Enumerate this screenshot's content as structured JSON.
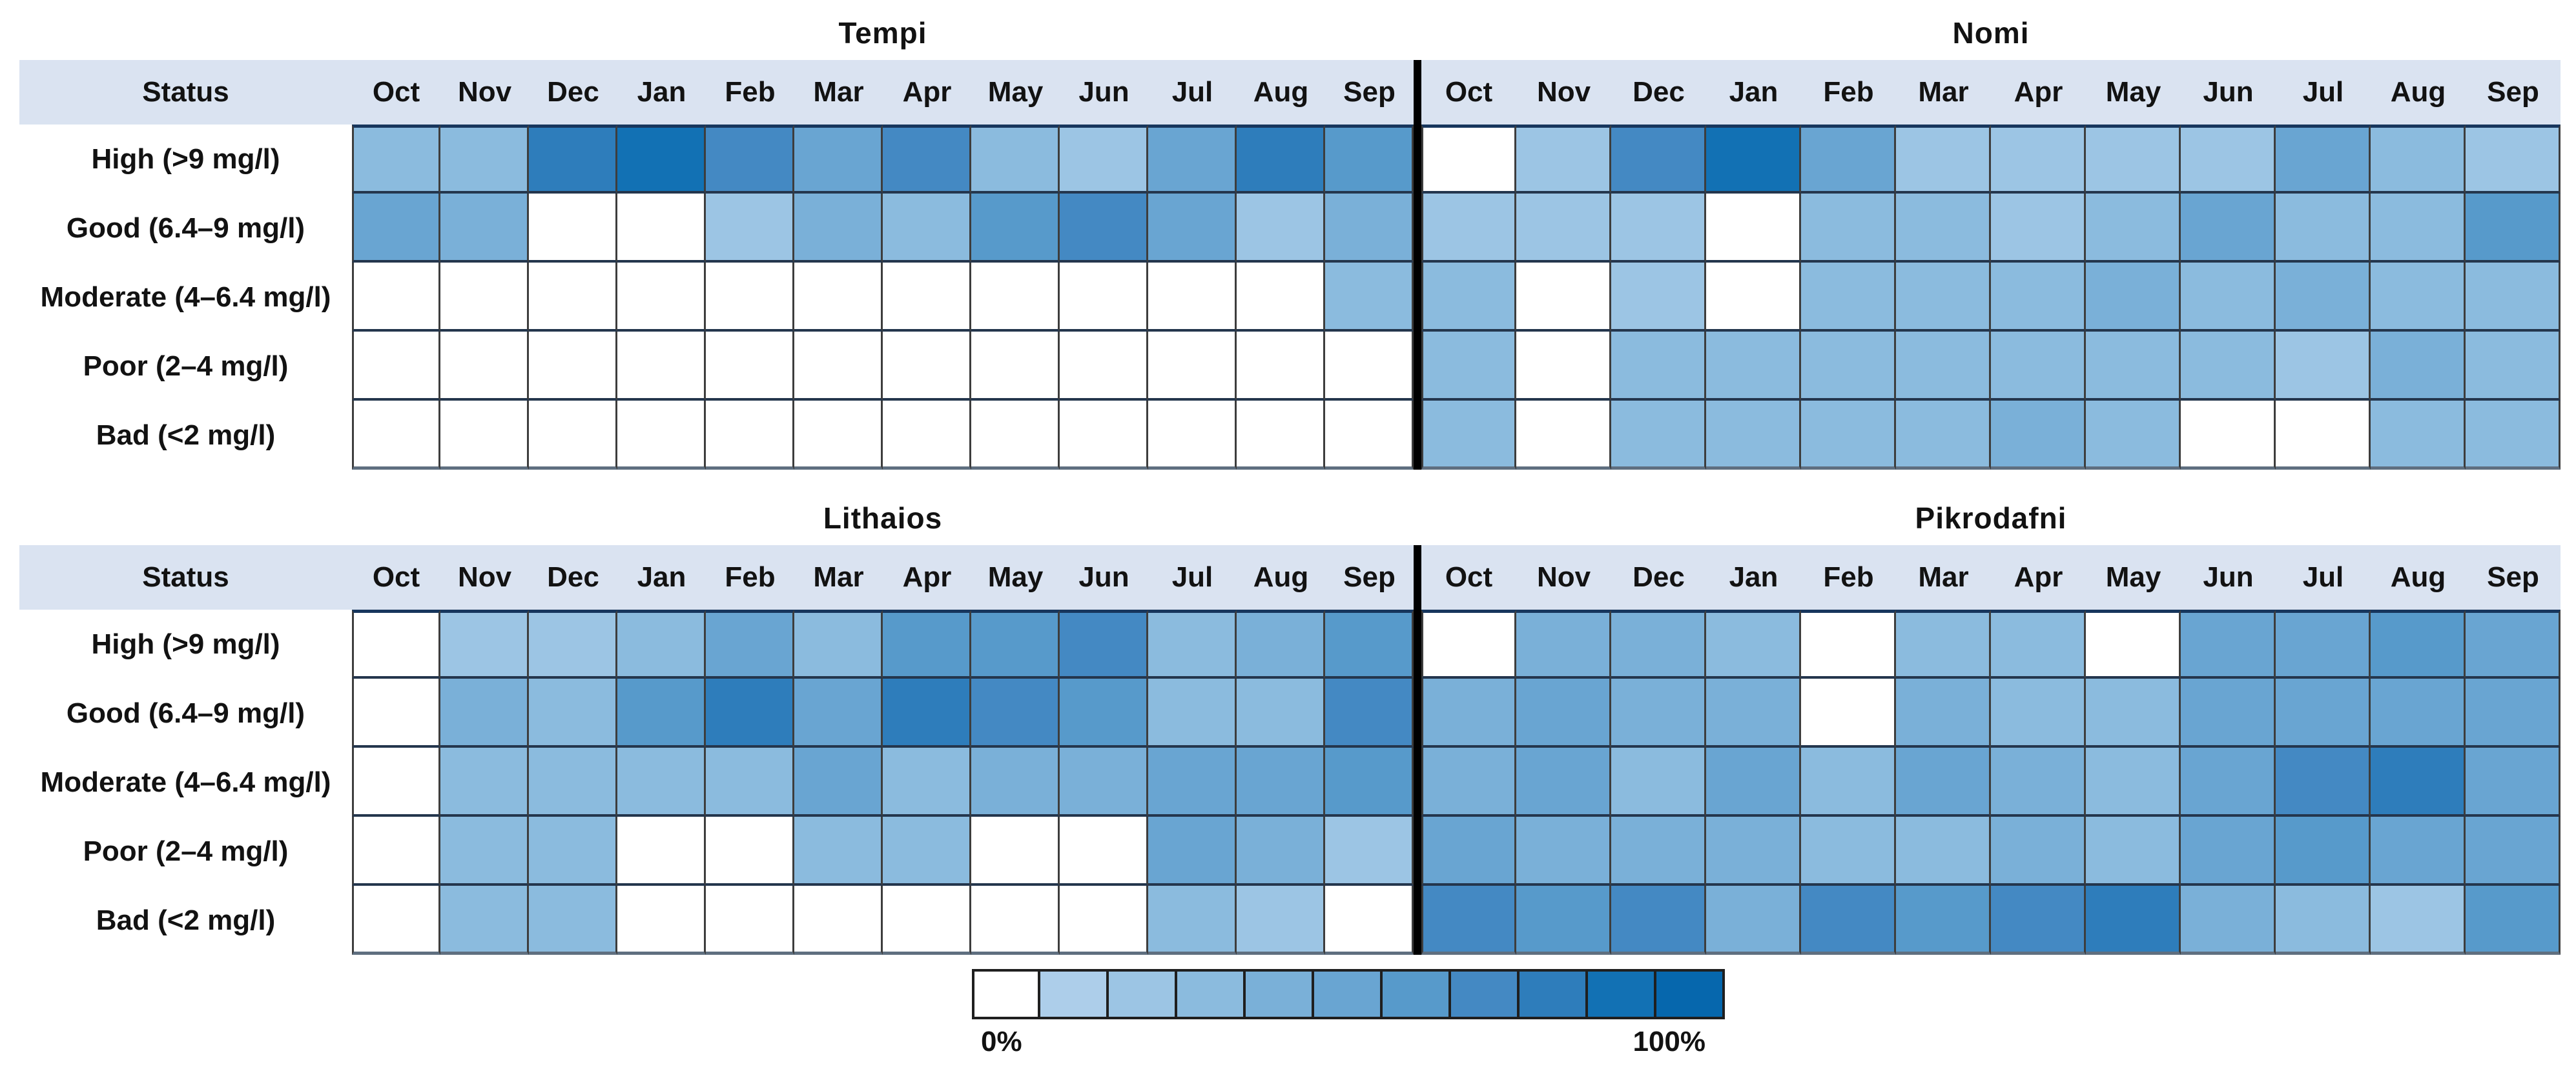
{
  "figure": {
    "status_header": "Status",
    "legend": {
      "min_label": "0%",
      "max_label": "100%",
      "levels": 11
    },
    "palette": [
      "#FFFFFF",
      "#ADCEEA",
      "#9CC5E4",
      "#8BBBDE",
      "#7AB0D8",
      "#69A5D2",
      "#579ACB",
      "#4489C3",
      "#2E7DBB",
      "#1271B4",
      "#0667AD"
    ],
    "header_band_color": "#DAE3F1",
    "divider_color": "#000000"
  },
  "chart_data": [
    {
      "type": "heatmap",
      "title": "Tempi",
      "position": "top-left",
      "x_categories": [
        "Oct",
        "Nov",
        "Dec",
        "Jan",
        "Feb",
        "Mar",
        "Apr",
        "May",
        "Jun",
        "Jul",
        "Aug",
        "Sep"
      ],
      "y_categories": [
        "High (>9 mg/l)",
        "Good (6.4–9 mg/l)",
        "Moderate (4–6.4 mg/l)",
        "Poor (2–4 mg/l)",
        "Bad (<2 mg/l)"
      ],
      "value_range": [
        0,
        100
      ],
      "values_percent": [
        [
          30,
          30,
          80,
          90,
          70,
          50,
          70,
          30,
          20,
          50,
          80,
          60
        ],
        [
          50,
          40,
          0,
          0,
          20,
          40,
          30,
          60,
          70,
          50,
          20,
          40
        ],
        [
          0,
          0,
          0,
          0,
          0,
          0,
          0,
          0,
          0,
          0,
          0,
          30
        ],
        [
          0,
          0,
          0,
          0,
          0,
          0,
          0,
          0,
          0,
          0,
          0,
          0
        ],
        [
          0,
          0,
          0,
          0,
          0,
          0,
          0,
          0,
          0,
          0,
          0,
          0
        ]
      ]
    },
    {
      "type": "heatmap",
      "title": "Nomi",
      "position": "top-right",
      "x_categories": [
        "Oct",
        "Nov",
        "Dec",
        "Jan",
        "Feb",
        "Mar",
        "Apr",
        "May",
        "Jun",
        "Jul",
        "Aug",
        "Sep"
      ],
      "y_categories": [
        "High (>9 mg/l)",
        "Good (6.4–9 mg/l)",
        "Moderate (4–6.4 mg/l)",
        "Poor (2–4 mg/l)",
        "Bad (<2 mg/l)"
      ],
      "value_range": [
        0,
        100
      ],
      "values_percent": [
        [
          0,
          20,
          70,
          90,
          50,
          20,
          20,
          20,
          20,
          50,
          30,
          20
        ],
        [
          20,
          20,
          20,
          0,
          30,
          30,
          20,
          30,
          50,
          30,
          30,
          60
        ],
        [
          30,
          0,
          20,
          0,
          30,
          30,
          30,
          40,
          30,
          40,
          30,
          30
        ],
        [
          30,
          0,
          30,
          30,
          30,
          30,
          30,
          30,
          30,
          20,
          40,
          30
        ],
        [
          30,
          0,
          30,
          30,
          30,
          30,
          40,
          30,
          0,
          0,
          30,
          30
        ]
      ]
    },
    {
      "type": "heatmap",
      "title": "Lithaios",
      "position": "bottom-left",
      "x_categories": [
        "Oct",
        "Nov",
        "Dec",
        "Jan",
        "Feb",
        "Mar",
        "Apr",
        "May",
        "Jun",
        "Jul",
        "Aug",
        "Sep"
      ],
      "y_categories": [
        "High (>9 mg/l)",
        "Good (6.4–9 mg/l)",
        "Moderate (4–6.4 mg/l)",
        "Poor (2–4 mg/l)",
        "Bad (<2 mg/l)"
      ],
      "value_range": [
        0,
        100
      ],
      "values_percent": [
        [
          0,
          20,
          20,
          30,
          50,
          30,
          60,
          60,
          70,
          30,
          40,
          60
        ],
        [
          0,
          40,
          30,
          60,
          80,
          50,
          80,
          70,
          60,
          30,
          30,
          70
        ],
        [
          0,
          30,
          30,
          30,
          30,
          50,
          30,
          40,
          40,
          50,
          50,
          60
        ],
        [
          0,
          30,
          30,
          0,
          0,
          30,
          30,
          0,
          0,
          50,
          40,
          20
        ],
        [
          0,
          30,
          30,
          0,
          0,
          0,
          0,
          0,
          0,
          30,
          20,
          0
        ]
      ]
    },
    {
      "type": "heatmap",
      "title": "Pikrodafni",
      "position": "bottom-right",
      "x_categories": [
        "Oct",
        "Nov",
        "Dec",
        "Jan",
        "Feb",
        "Mar",
        "Apr",
        "May",
        "Jun",
        "Jul",
        "Aug",
        "Sep"
      ],
      "y_categories": [
        "High (>9 mg/l)",
        "Good (6.4–9 mg/l)",
        "Moderate (4–6.4 mg/l)",
        "Poor (2–4 mg/l)",
        "Bad (<2 mg/l)"
      ],
      "value_range": [
        0,
        100
      ],
      "values_percent": [
        [
          0,
          40,
          40,
          30,
          0,
          30,
          30,
          0,
          50,
          50,
          60,
          50
        ],
        [
          40,
          50,
          40,
          40,
          0,
          40,
          30,
          30,
          50,
          50,
          50,
          50
        ],
        [
          40,
          50,
          30,
          50,
          30,
          50,
          40,
          30,
          50,
          70,
          80,
          50
        ],
        [
          50,
          40,
          40,
          40,
          30,
          30,
          40,
          30,
          50,
          60,
          50,
          50
        ],
        [
          70,
          60,
          70,
          40,
          70,
          60,
          70,
          80,
          40,
          30,
          20,
          60
        ]
      ]
    }
  ]
}
